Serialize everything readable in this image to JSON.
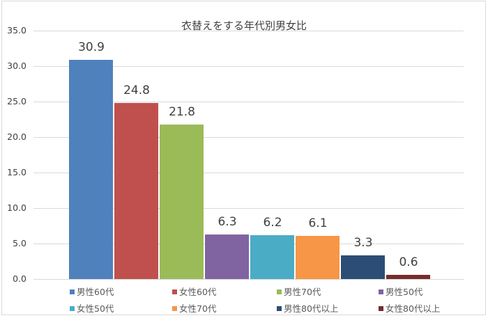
{
  "chart_data": {
    "type": "bar",
    "title": "衣替えをする年代別男女比",
    "xlabel": "",
    "ylabel": "",
    "ylim": [
      0,
      35
    ],
    "yticks": [
      "0.0",
      "5.0",
      "10.0",
      "15.0",
      "20.0",
      "25.0",
      "30.0",
      "35.0"
    ],
    "grid": true,
    "legend_position": "bottom",
    "categories": [
      "男性60代",
      "女性60代",
      "男性70代",
      "男性50代",
      "女性50代",
      "女性70代",
      "男性80代以上",
      "女性80代以上"
    ],
    "series": [
      {
        "name": "男性60代",
        "values": [
          30.9
        ],
        "label": "30.9",
        "color": "#4f81bd"
      },
      {
        "name": "女性60代",
        "values": [
          24.8
        ],
        "label": "24.8",
        "color": "#c0504d"
      },
      {
        "name": "男性70代",
        "values": [
          21.8
        ],
        "label": "21.8",
        "color": "#9bbb59"
      },
      {
        "name": "男性50代",
        "values": [
          6.3
        ],
        "label": "6.3",
        "color": "#8064a2"
      },
      {
        "name": "女性50代",
        "values": [
          6.2
        ],
        "label": "6.2",
        "color": "#4bacc6"
      },
      {
        "name": "女性70代",
        "values": [
          6.1
        ],
        "label": "6.1",
        "color": "#f79646"
      },
      {
        "name": "男性80代以上",
        "values": [
          3.3
        ],
        "label": "3.3",
        "color": "#2c4d75"
      },
      {
        "name": "女性80代以上",
        "values": [
          0.6
        ],
        "label": "0.6",
        "color": "#772c2a"
      }
    ]
  }
}
